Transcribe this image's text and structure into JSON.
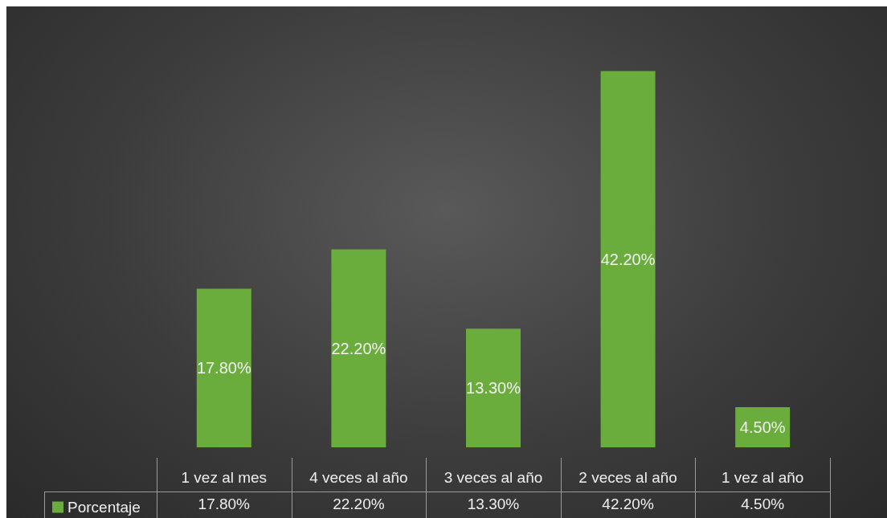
{
  "chart_data": {
    "type": "bar",
    "categories": [
      "1 vez al mes",
      "4 veces al año",
      "3 veces al año",
      "2 veces al año",
      "1 vez al año"
    ],
    "series": [
      {
        "name": "Porcentaje",
        "color": "#6aad3d",
        "values": [
          17.8,
          22.2,
          13.3,
          42.2,
          4.5
        ],
        "value_labels": [
          "17.80%",
          "22.20%",
          "13.30%",
          "42.20%",
          "4.50%"
        ]
      }
    ],
    "legend": "bottom left"
  }
}
